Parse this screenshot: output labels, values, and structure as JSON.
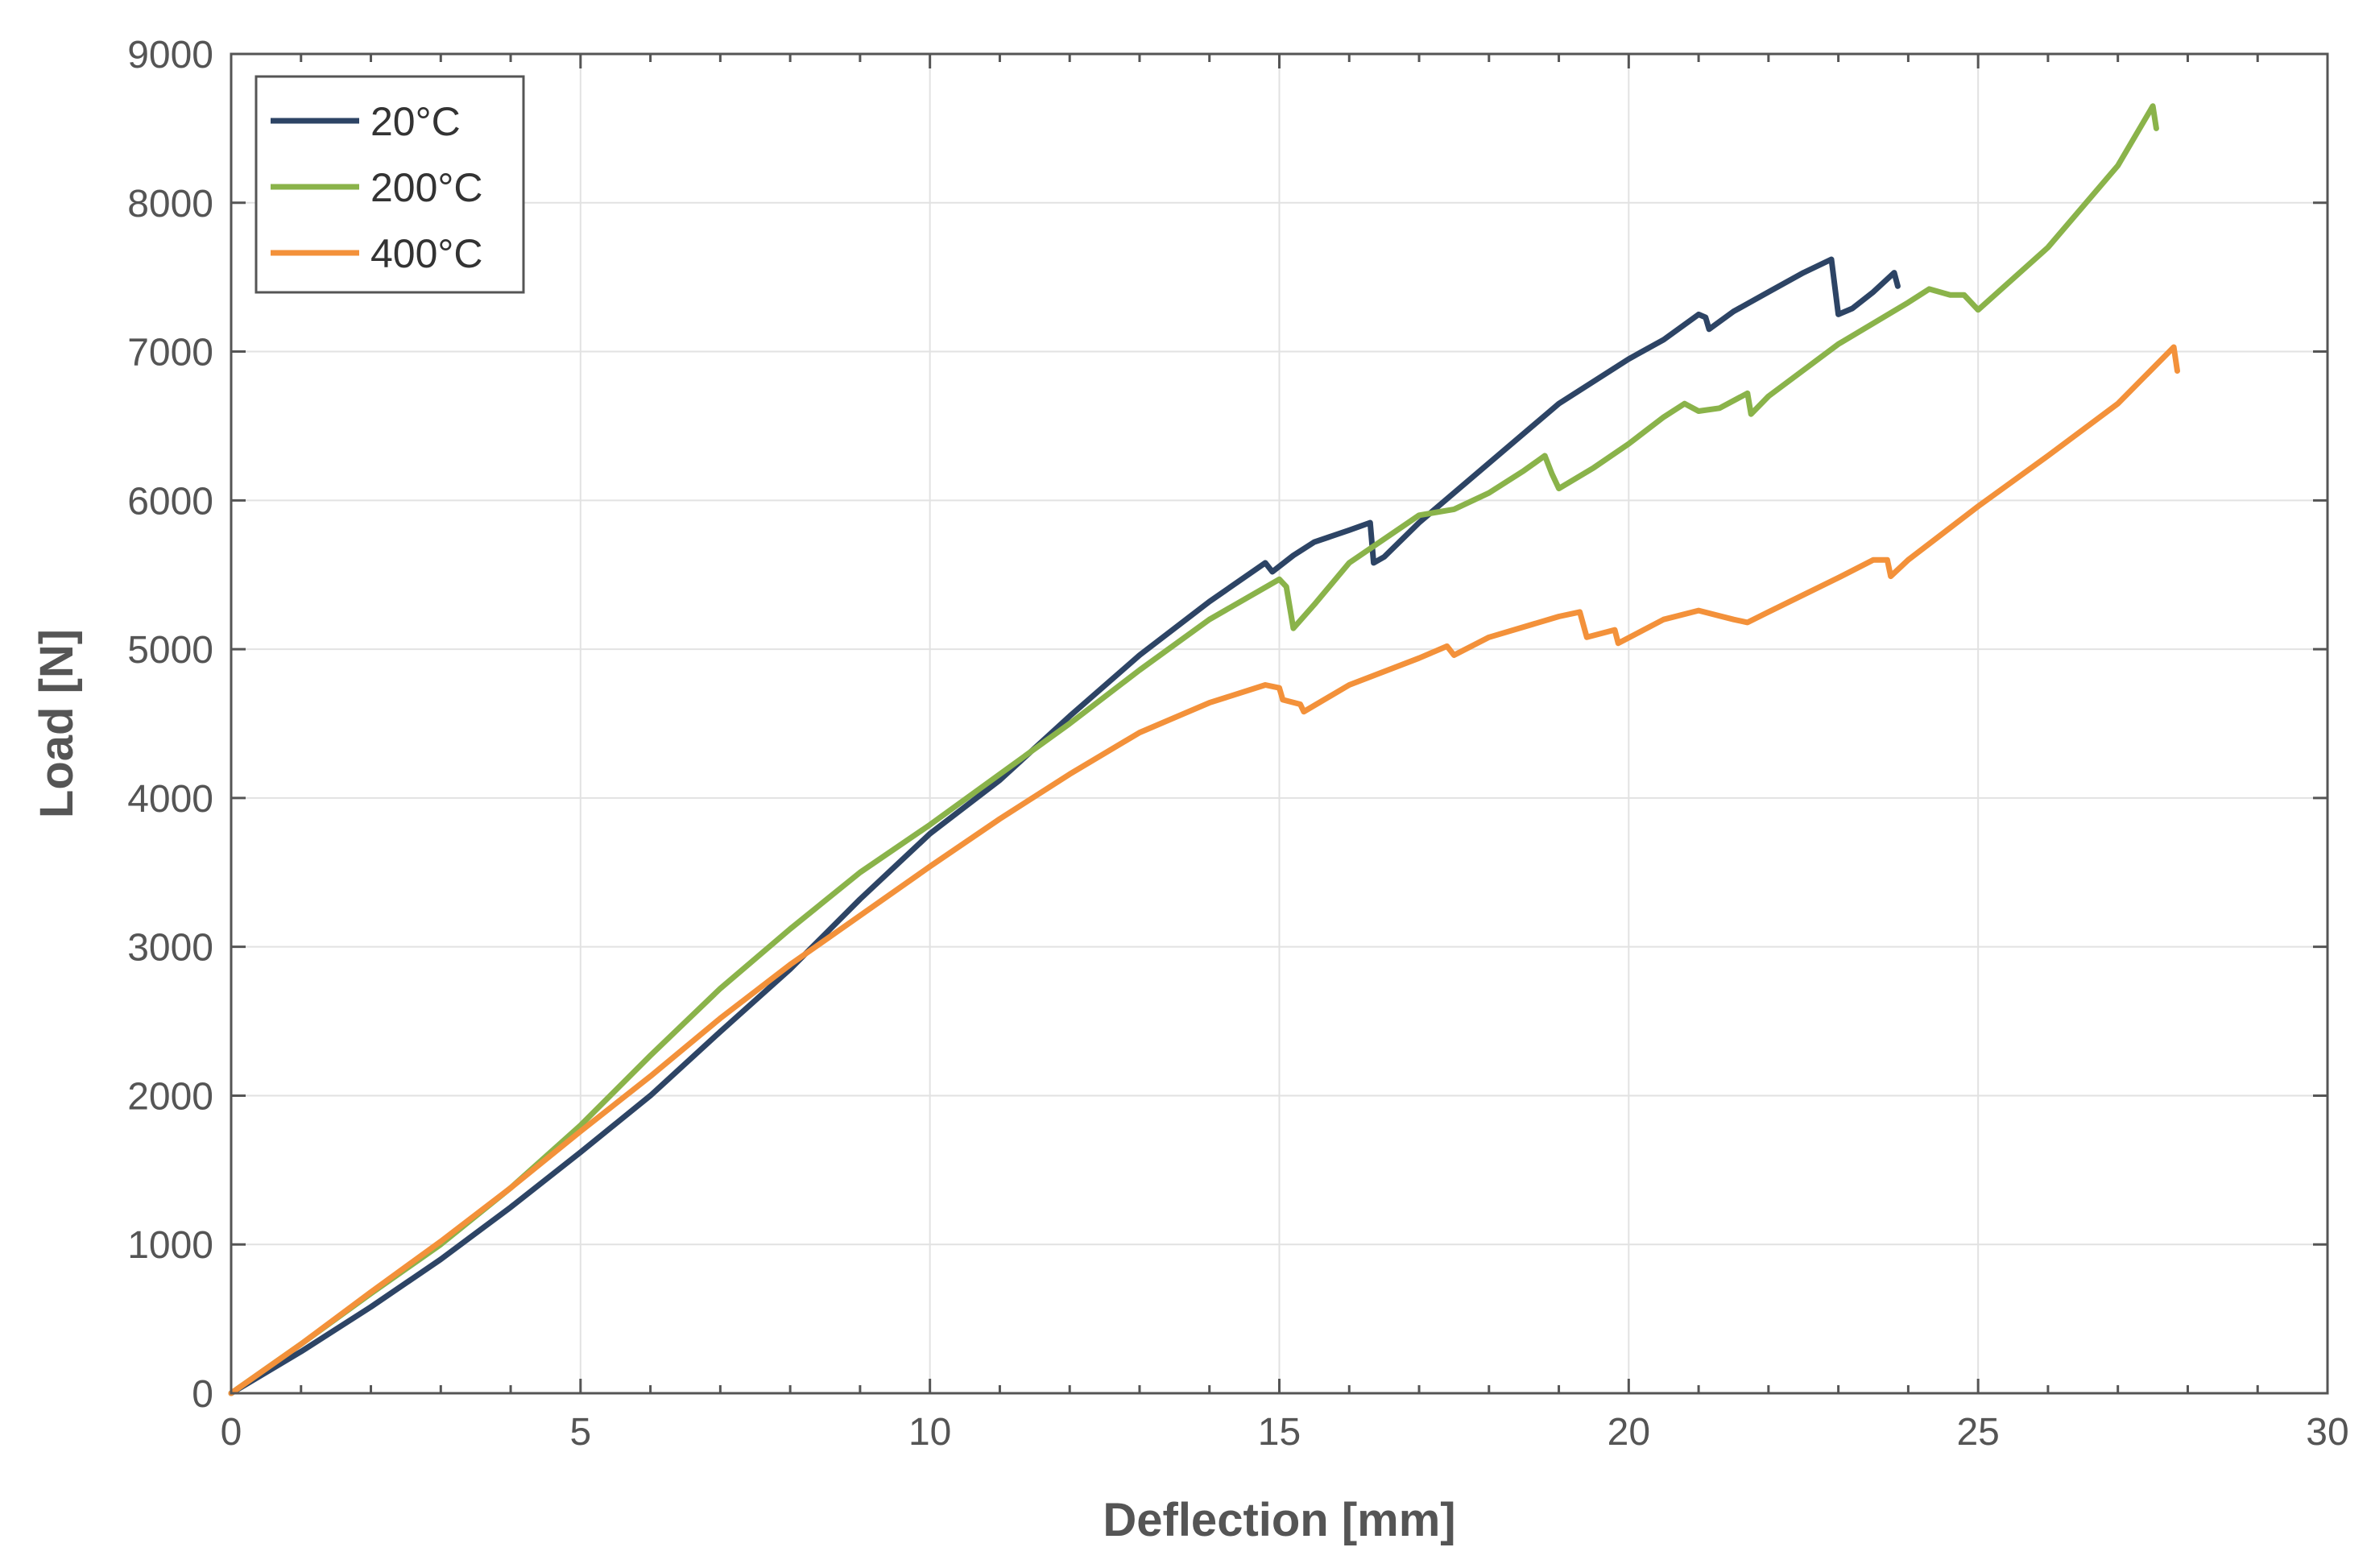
{
  "chart_data": {
    "type": "line",
    "title": "",
    "xlabel": "Deflection [mm]",
    "ylabel": "Load [N]",
    "xlim": [
      0,
      30
    ],
    "ylim": [
      0,
      9000
    ],
    "xticks": [
      0,
      5,
      10,
      15,
      20,
      25,
      30
    ],
    "yticks": [
      0,
      1000,
      2000,
      3000,
      4000,
      5000,
      6000,
      7000,
      8000,
      9000
    ],
    "grid": true,
    "legend_position": "top-left",
    "series": [
      {
        "name": "20°C",
        "color": "#2d4465",
        "x": [
          0,
          1,
          2,
          3,
          4,
          5,
          6,
          7,
          8,
          9,
          10,
          11,
          12,
          13,
          14,
          14.8,
          14.9,
          15.2,
          15.5,
          16.0,
          16.3,
          16.35,
          16.5,
          17,
          18,
          19,
          20,
          20.5,
          21.0,
          21.1,
          21.15,
          21.5,
          22,
          22.5,
          22.9,
          23.0,
          23.2,
          23.5,
          23.8,
          23.85
        ],
        "y": [
          0,
          280,
          580,
          900,
          1250,
          1620,
          2000,
          2430,
          2850,
          3320,
          3760,
          4120,
          4550,
          4960,
          5320,
          5580,
          5520,
          5630,
          5720,
          5800,
          5850,
          5580,
          5620,
          5850,
          6250,
          6650,
          6950,
          7080,
          7250,
          7230,
          7150,
          7270,
          7400,
          7530,
          7620,
          7250,
          7290,
          7400,
          7530,
          7440
        ]
      },
      {
        "name": "200°C",
        "color": "#8ab34a",
        "x": [
          0,
          1,
          2,
          3,
          4,
          5,
          6,
          7,
          8,
          9,
          10,
          11,
          12,
          13,
          14,
          15.0,
          15.1,
          15.2,
          15.5,
          16,
          17,
          17.5,
          18,
          18.5,
          18.8,
          18.9,
          19.0,
          19.5,
          20,
          20.5,
          20.8,
          21.0,
          21.3,
          21.7,
          21.75,
          22,
          23,
          24,
          24.3,
          24.6,
          24.8,
          25.0,
          26,
          27,
          27.5,
          27.55
        ],
        "y": [
          0,
          330,
          670,
          1000,
          1380,
          1800,
          2270,
          2720,
          3120,
          3500,
          3820,
          4160,
          4500,
          4860,
          5200,
          5470,
          5420,
          5140,
          5300,
          5580,
          5900,
          5940,
          6050,
          6200,
          6300,
          6180,
          6080,
          6220,
          6380,
          6560,
          6650,
          6600,
          6620,
          6720,
          6580,
          6700,
          7050,
          7330,
          7420,
          7380,
          7380,
          7280,
          7700,
          8250,
          8650,
          8500
        ]
      },
      {
        "name": "400°C",
        "color": "#f3913a",
        "x": [
          0,
          1,
          2,
          3,
          4,
          5,
          6,
          7,
          8,
          9,
          10,
          11,
          12,
          13,
          14,
          14.8,
          15.0,
          15.05,
          15.3,
          15.35,
          16,
          17,
          17.4,
          17.5,
          18,
          19,
          19.3,
          19.4,
          19.8,
          19.85,
          20.5,
          21.0,
          21.5,
          21.7,
          22,
          23,
          23.5,
          23.7,
          23.75,
          24,
          25,
          26,
          27,
          27.8,
          27.85
        ],
        "y": [
          0,
          330,
          680,
          1020,
          1380,
          1760,
          2130,
          2520,
          2880,
          3210,
          3540,
          3860,
          4160,
          4440,
          4640,
          4760,
          4740,
          4660,
          4630,
          4580,
          4760,
          4940,
          5020,
          4960,
          5080,
          5220,
          5250,
          5080,
          5130,
          5040,
          5200,
          5260,
          5200,
          5180,
          5250,
          5480,
          5600,
          5600,
          5490,
          5600,
          5960,
          6300,
          6650,
          7030,
          6870
        ]
      }
    ]
  }
}
